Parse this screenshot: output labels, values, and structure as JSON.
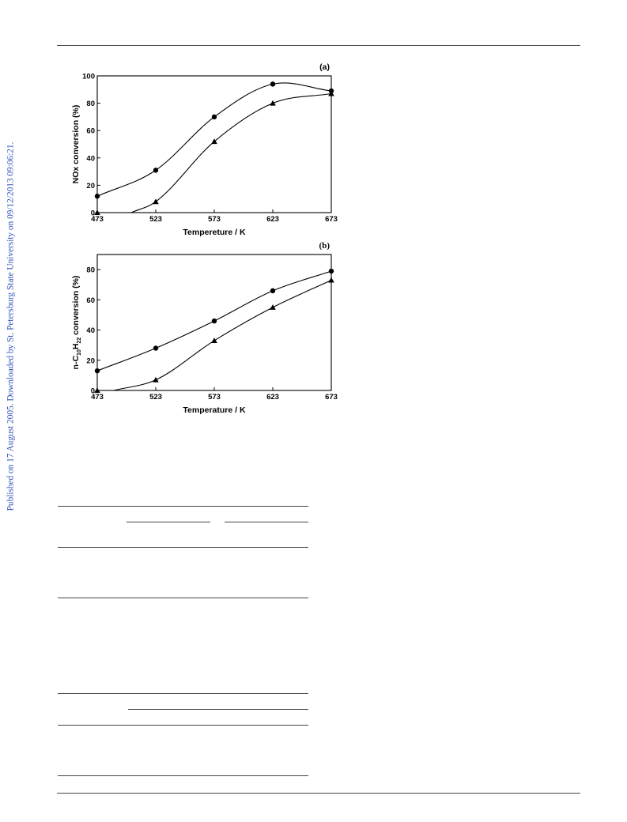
{
  "page": {
    "side_note": "Published on 17 August 2005. Downloaded by St. Petersburg State University on 09/12/2013 09:06:21."
  },
  "chart_data": [
    {
      "type": "scatter",
      "panel_label": "(a)",
      "xlabel": "Tempereture / K",
      "ylabel": "NOx conversion (%)",
      "xlim": [
        473,
        673
      ],
      "ylim": [
        0,
        100
      ],
      "x_ticks": [
        473,
        523,
        573,
        623,
        673
      ],
      "y_ticks": [
        0,
        20,
        40,
        60,
        80,
        100
      ],
      "smooth_lines": true,
      "series": [
        {
          "marker": "circle",
          "x": [
            473,
            523,
            573,
            623,
            673
          ],
          "y": [
            12,
            31,
            70,
            94,
            89
          ]
        },
        {
          "marker": "triangle",
          "x": [
            473,
            523,
            573,
            623,
            673
          ],
          "y": [
            0,
            8,
            52,
            80,
            87
          ]
        }
      ]
    },
    {
      "type": "scatter",
      "panel_label": "(b)",
      "xlabel": "Temperature / K",
      "ylabel": "n-C10H22 conversion (%)",
      "ylabel_parts": {
        "prefix": "n-C",
        "sub1": "10",
        "mid": "H",
        "sub2": "22",
        "suffix": " conversion (%)"
      },
      "xlim": [
        473,
        673
      ],
      "ylim": [
        0,
        90
      ],
      "x_ticks": [
        473,
        523,
        573,
        623,
        673
      ],
      "y_ticks": [
        0,
        20,
        40,
        60,
        80
      ],
      "smooth_lines": true,
      "series": [
        {
          "marker": "circle",
          "x": [
            473,
            523,
            573,
            623,
            673
          ],
          "y": [
            13,
            28,
            46,
            66,
            79
          ]
        },
        {
          "marker": "triangle",
          "x": [
            473,
            523,
            573,
            623,
            673
          ],
          "y": [
            0,
            7,
            33,
            55,
            73
          ]
        }
      ]
    }
  ]
}
